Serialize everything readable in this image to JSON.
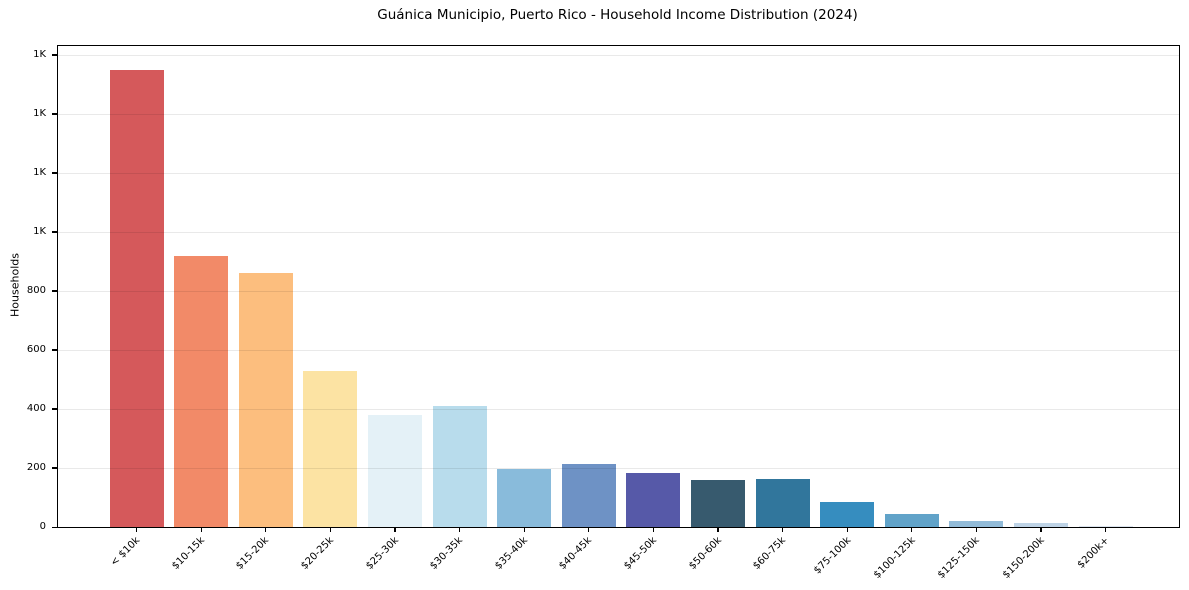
{
  "background": "#ffffff",
  "chart_data": {
    "type": "bar",
    "title": "Guánica Municipio, Puerto Rico - Household Income Distribution (2024)",
    "xlabel": "",
    "ylabel": "Households",
    "categories": [
      "< $10k",
      "$10-15k",
      "$15-20k",
      "$20-25k",
      "$25-30k",
      "$30-35k",
      "$35-40k",
      "$40-45k",
      "$45-50k",
      "$50-60k",
      "$60-75k",
      "$75-100k",
      "$100-125k",
      "$125-150k",
      "$150-200k",
      "$200k+"
    ],
    "values": [
      1550,
      920,
      860,
      530,
      380,
      410,
      196,
      214,
      184,
      158,
      164,
      84,
      44,
      22,
      15,
      4
    ],
    "bar_colors": [
      "#d5595b",
      "#f28a68",
      "#fcbe7e",
      "#fce3a3",
      "#e4f1f7",
      "#b8dcec",
      "#89bbdb",
      "#6e92c5",
      "#5659a8",
      "#375a6e",
      "#31769c",
      "#368dbf",
      "#61a3c9",
      "#92bbd8",
      "#bed3e6",
      "#dbe4ee"
    ],
    "ylim": [
      0,
      1630
    ],
    "yticks": [
      {
        "value": 0,
        "label": "0"
      },
      {
        "value": 200,
        "label": "200"
      },
      {
        "value": 400,
        "label": "400"
      },
      {
        "value": 600,
        "label": "600"
      },
      {
        "value": 800,
        "label": "800"
      },
      {
        "value": 1000,
        "label": "1K"
      },
      {
        "value": 1200,
        "label": "1K"
      },
      {
        "value": 1400,
        "label": "1K"
      },
      {
        "value": 1600,
        "label": "1K"
      }
    ],
    "grid": true,
    "legend": false,
    "x_tick_rotation": 45
  }
}
